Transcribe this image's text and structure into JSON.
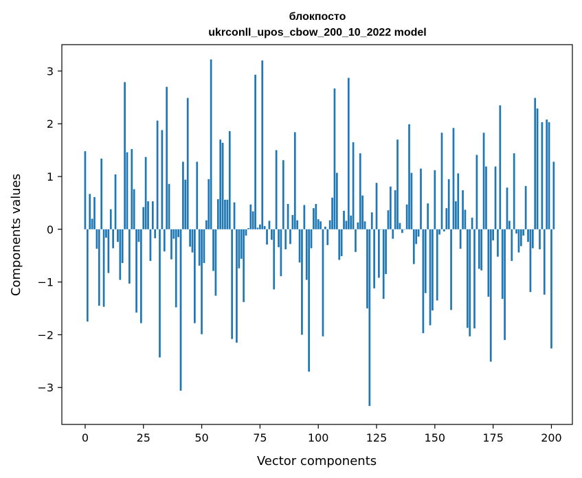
{
  "chart_data": {
    "type": "bar",
    "title_line1": "блокпосто",
    "title_line2": "ukrconll_upos_cbow_200_10_2022 model",
    "xlabel": "Vector components",
    "ylabel": "Components values",
    "xlim": [
      -10,
      209
    ],
    "ylim": [
      -3.7,
      3.5
    ],
    "xticks": [
      0,
      25,
      50,
      75,
      100,
      125,
      150,
      175,
      200
    ],
    "yticks": [
      -3,
      -2,
      -1,
      0,
      1,
      2,
      3
    ],
    "ytick_labels": [
      "−3",
      "−2",
      "−1",
      "0",
      "1",
      "2",
      "3"
    ],
    "bar_color": "#1f77b4",
    "grid": false,
    "values": [
      1.48,
      -1.75,
      0.67,
      0.2,
      0.61,
      -0.37,
      -1.45,
      1.34,
      -1.47,
      -0.16,
      -0.83,
      0.38,
      -0.36,
      1.04,
      -0.24,
      -0.96,
      -0.64,
      2.79,
      1.46,
      -1.03,
      1.52,
      0.76,
      -1.58,
      -0.24,
      -1.78,
      0.42,
      1.37,
      0.53,
      -0.6,
      0.53,
      -0.17,
      2.06,
      -2.43,
      1.88,
      -0.42,
      2.7,
      0.86,
      -0.57,
      -0.18,
      -1.48,
      -0.15,
      -3.06,
      1.28,
      0.94,
      2.49,
      -0.33,
      -0.44,
      -1.78,
      1.28,
      -0.69,
      -1.99,
      -0.64,
      0.17,
      0.95,
      3.22,
      -0.79,
      -1.26,
      0.57,
      1.7,
      1.64,
      0.56,
      0.56,
      1.86,
      -2.08,
      0.51,
      -2.15,
      -0.74,
      -0.56,
      -1.38,
      -0.12,
      0.02,
      0.47,
      0.34,
      2.93,
      0.03,
      0.09,
      3.2,
      0.06,
      -0.29,
      0.16,
      -0.2,
      -1.14,
      1.5,
      -0.34,
      -0.89,
      1.31,
      -0.38,
      0.48,
      -0.28,
      0.27,
      1.84,
      0.17,
      -0.63,
      -2.0,
      0.46,
      -0.96,
      -2.7,
      -0.36,
      0.4,
      0.48,
      0.19,
      0.15,
      -2.03,
      0.05,
      -0.3,
      0.17,
      0.6,
      2.67,
      1.07,
      -0.58,
      -0.51,
      0.35,
      0.16,
      2.87,
      0.26,
      1.65,
      -0.43,
      0.13,
      1.44,
      0.64,
      0.15,
      -1.5,
      -3.35,
      0.32,
      -1.12,
      0.88,
      -0.92,
      0.0,
      -1.32,
      -0.85,
      0.36,
      0.81,
      -0.18,
      0.74,
      1.7,
      0.12,
      -0.07,
      0.0,
      0.47,
      1.99,
      1.07,
      -0.66,
      -0.28,
      -0.14,
      1.15,
      -1.97,
      -1.21,
      0.49,
      -1.82,
      -1.54,
      1.12,
      -1.35,
      -0.1,
      1.83,
      -0.04,
      0.4,
      0.95,
      -1.53,
      1.92,
      0.53,
      1.06,
      -0.37,
      0.74,
      0.37,
      -1.87,
      -2.03,
      0.22,
      -1.88,
      1.41,
      -0.75,
      -0.78,
      1.83,
      1.19,
      -1.28,
      -2.51,
      -0.21,
      1.19,
      -0.52,
      2.35,
      -1.32,
      -2.1,
      0.79,
      0.16,
      -0.6,
      1.44,
      -0.08,
      -0.44,
      -0.32,
      -0.12,
      0.82,
      -0.24,
      -1.19,
      -0.36,
      2.49,
      2.29,
      -0.38,
      2.03,
      -1.24,
      2.08,
      2.03,
      -2.26,
      1.28
    ]
  }
}
